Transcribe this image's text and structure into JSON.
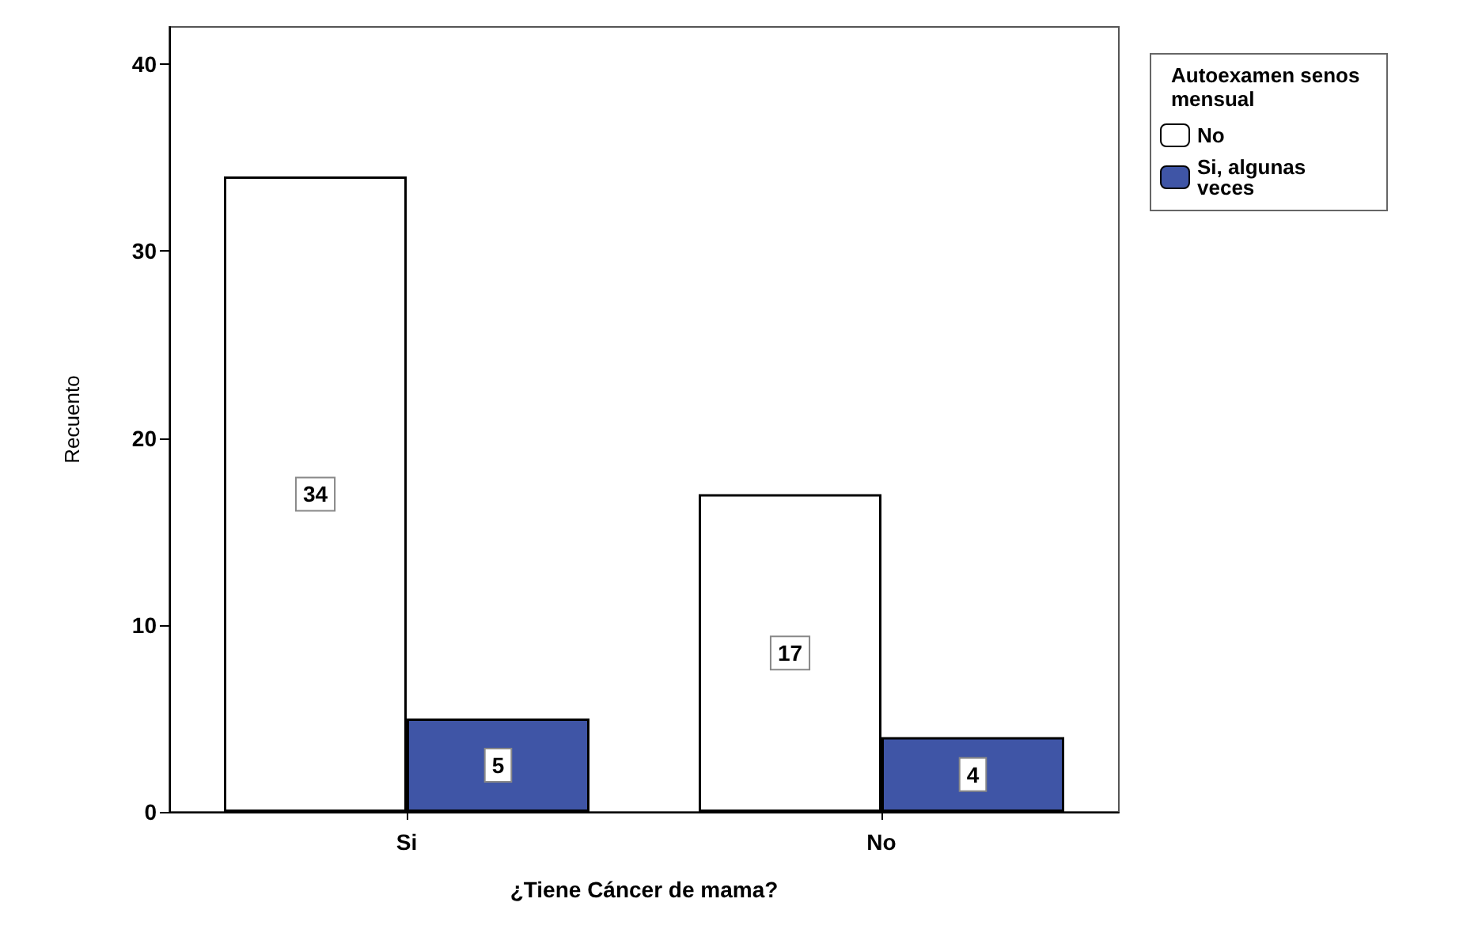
{
  "chart_data": {
    "type": "bar",
    "xlabel": "¿Tiene Cáncer de mama?",
    "ylabel": "Recuento",
    "legend_title": "Autoexamen senos mensual",
    "categories": [
      "Si",
      "No"
    ],
    "series": [
      {
        "name": "No",
        "color": "#ffffff",
        "values": [
          34,
          17
        ]
      },
      {
        "name": "Si, algunas veces",
        "color": "#3f55a6",
        "values": [
          5,
          4
        ]
      }
    ],
    "ylim": [
      0,
      42
    ],
    "yticks": [
      0,
      10,
      20,
      30,
      40
    ],
    "data_labels": true,
    "legend": "top right"
  }
}
